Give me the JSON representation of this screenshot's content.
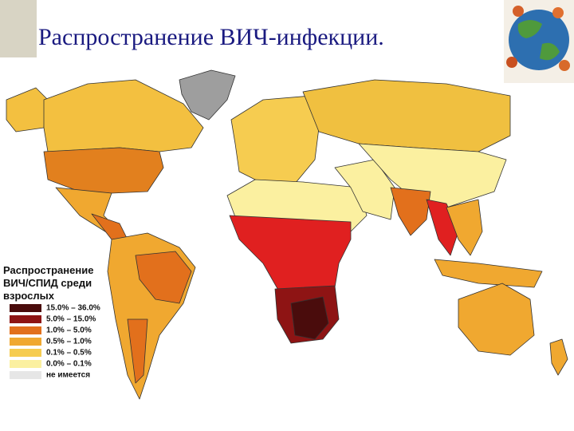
{
  "title": "Распространение ВИЧ-инфекции.",
  "legend": {
    "title": [
      "Распространение",
      "ВИЧ/СПИД среди",
      "взрослых"
    ],
    "items": [
      {
        "label": "15.0% – 36.0%",
        "color": "#4a0c0c"
      },
      {
        "label": "5.0% – 15.0%",
        "color": "#8e1414"
      },
      {
        "label": "1.0% – 5.0%",
        "color": "#e2701c"
      },
      {
        "label": "0.5% – 1.0%",
        "color": "#f0a830"
      },
      {
        "label": "0.1% – 0.5%",
        "color": "#f6cc50"
      },
      {
        "label": "0.0% – 0.1%",
        "color": "#fbf0a0"
      },
      {
        "label": "не имеется",
        "color": "#e6e6e6"
      }
    ]
  }
}
